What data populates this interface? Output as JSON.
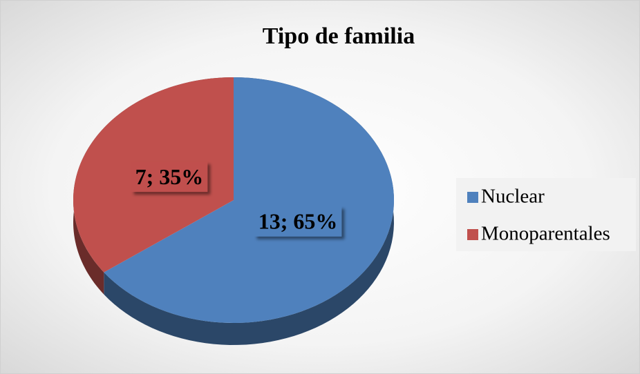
{
  "chart_data": {
    "type": "pie",
    "title": "Tipo de familia",
    "categories": [
      "Nuclear",
      "Monoparentales"
    ],
    "values": [
      13,
      7
    ],
    "value_labels": [
      "13; 65%",
      "7; 35%"
    ],
    "colors": [
      "#4f81bd",
      "#c0504d"
    ],
    "legend": "right"
  }
}
